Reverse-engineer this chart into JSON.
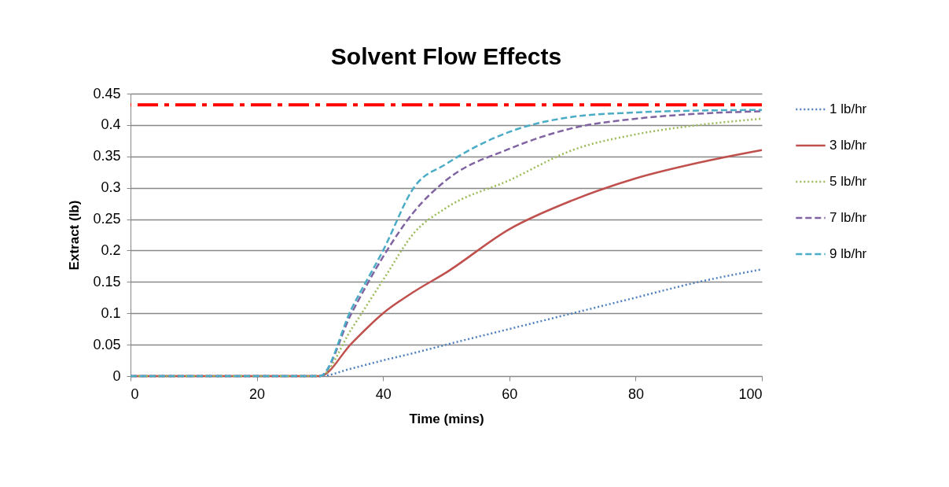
{
  "chart_data": {
    "type": "line",
    "title": "Solvent Flow Effects",
    "xlabel": "Time (mins)",
    "ylabel": "Extract (lb)",
    "x": [
      0,
      30,
      35,
      40,
      45,
      50,
      60,
      70,
      80,
      90,
      100
    ],
    "series": [
      {
        "name": "1 lb/hr",
        "color": "#4f81bd",
        "line_style": "dotted",
        "values": [
          0,
          0,
          0.012,
          0.025,
          0.037,
          0.05,
          0.075,
          0.1,
          0.125,
          0.15,
          0.17
        ]
      },
      {
        "name": "3 lb/hr",
        "color": "#c0504d",
        "line_style": "solid",
        "values": [
          0,
          0,
          0.052,
          0.1,
          0.135,
          0.165,
          0.234,
          0.28,
          0.315,
          0.34,
          0.36
        ]
      },
      {
        "name": "5 lb/hr",
        "color": "#9bbb59",
        "line_style": "dotted",
        "values": [
          0,
          0,
          0.075,
          0.153,
          0.229,
          0.268,
          0.312,
          0.36,
          0.385,
          0.4,
          0.41
        ]
      },
      {
        "name": "7 lb/hr",
        "color": "#8064a2",
        "line_style": "dashed",
        "values": [
          0,
          0,
          0.1,
          0.19,
          0.263,
          0.312,
          0.362,
          0.395,
          0.41,
          0.418,
          0.422
        ]
      },
      {
        "name": "9 lb/hr",
        "color": "#4bacc6",
        "line_style": "dashed",
        "values": [
          0,
          0,
          0.107,
          0.2,
          0.302,
          0.338,
          0.389,
          0.413,
          0.42,
          0.423,
          0.424
        ]
      }
    ],
    "ref_lines": [
      {
        "axis": "y",
        "value": 0.432,
        "color": "#ff0000",
        "line_style": "dashed"
      }
    ],
    "xlim": [
      0,
      100
    ],
    "xticks": [
      0,
      20,
      40,
      60,
      80,
      100
    ],
    "ylim": [
      0,
      0.45
    ],
    "yticks": [
      0,
      0.05,
      0.1,
      0.15,
      0.2,
      0.25,
      0.3,
      0.35,
      0.4,
      0.45
    ],
    "grid": "y",
    "legend": "right",
    "marker": "none"
  }
}
